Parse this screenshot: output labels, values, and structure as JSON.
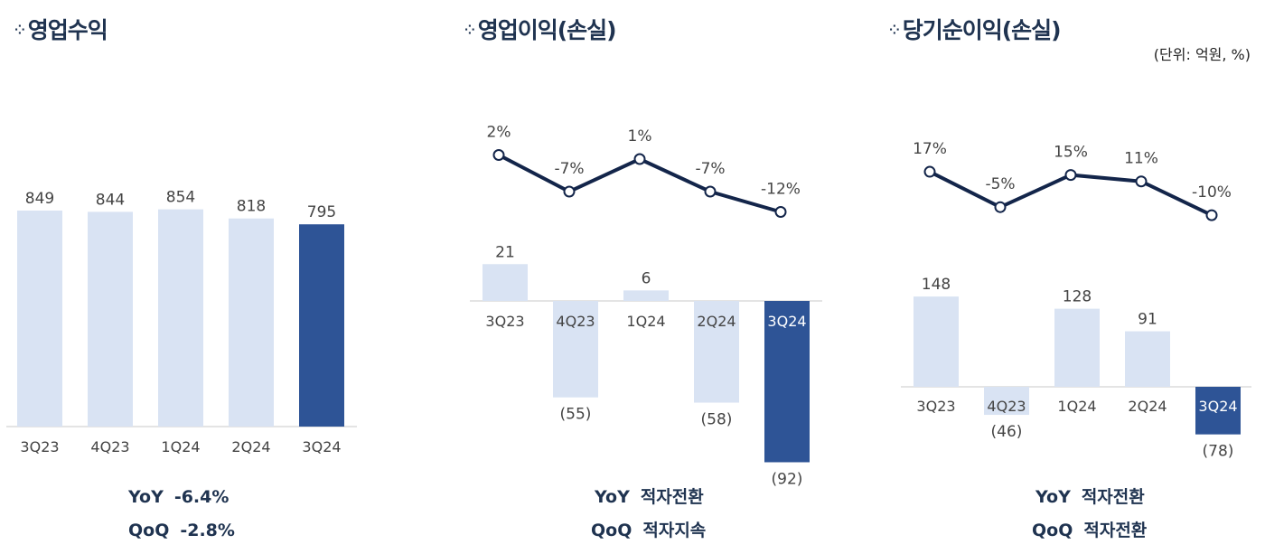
{
  "unit_label": "(단위: 억원, %)",
  "colors": {
    "bar_light": "#d9e3f3",
    "bar_highlight": "#2e5496",
    "line": "#13254a",
    "text": "#444444",
    "title": "#1f3350"
  },
  "chart_data": [
    {
      "type": "bar",
      "title": "영업수익",
      "categories": [
        "3Q23",
        "4Q23",
        "1Q24",
        "2Q24",
        "3Q24"
      ],
      "values": [
        849,
        844,
        854,
        818,
        795
      ],
      "value_labels": [
        "849",
        "844",
        "854",
        "818",
        "795"
      ],
      "highlight": "3Q24",
      "summary": {
        "yoy_label": "YoY",
        "yoy_value": "-6.4%",
        "qoq_label": "QoQ",
        "qoq_value": "-2.8%"
      }
    },
    {
      "type": "bar+line",
      "title": "영업이익(손실)",
      "categories": [
        "3Q23",
        "4Q23",
        "1Q24",
        "2Q24",
        "3Q24"
      ],
      "values": [
        21,
        -55,
        6,
        -58,
        -92
      ],
      "value_labels": [
        "21",
        "(55)",
        "6",
        "(58)",
        "(92)"
      ],
      "margin_pct": [
        2,
        -7,
        1,
        -7,
        -12
      ],
      "margin_labels": [
        "2%",
        "-7%",
        "1%",
        "-7%",
        "-12%"
      ],
      "highlight": "3Q24",
      "summary": {
        "yoy_label": "YoY",
        "yoy_value": "적자전환",
        "qoq_label": "QoQ",
        "qoq_value": "적자지속"
      }
    },
    {
      "type": "bar+line",
      "title": "당기순이익(손실)",
      "categories": [
        "3Q23",
        "4Q23",
        "1Q24",
        "2Q24",
        "3Q24"
      ],
      "values": [
        148,
        -46,
        128,
        91,
        -78
      ],
      "value_labels": [
        "148",
        "(46)",
        "128",
        "91",
        "(78)"
      ],
      "margin_pct": [
        17,
        -5,
        15,
        11,
        -10
      ],
      "margin_labels": [
        "17%",
        "-5%",
        "15%",
        "11%",
        "-10%"
      ],
      "highlight": "3Q24",
      "summary": {
        "yoy_label": "YoY",
        "yoy_value": "적자전환",
        "qoq_label": "QoQ",
        "qoq_value": "적자전환"
      }
    }
  ]
}
